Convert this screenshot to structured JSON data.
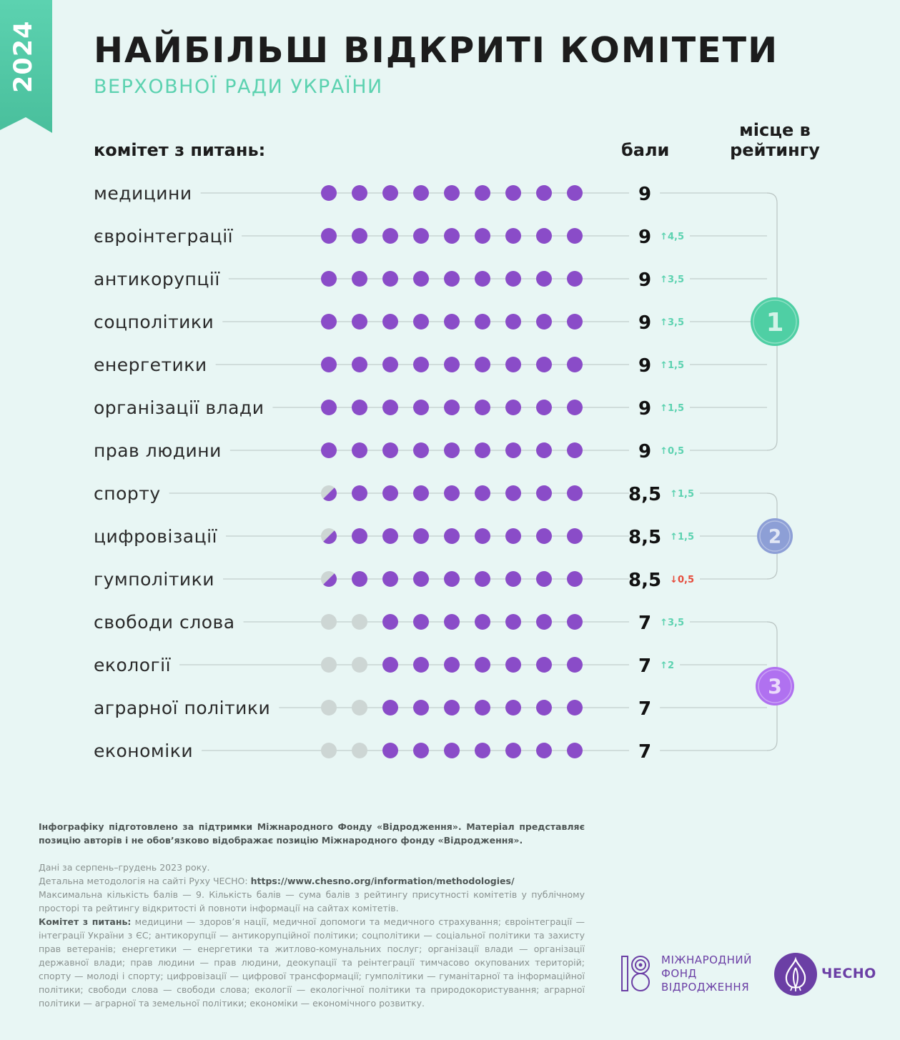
{
  "year": "2024",
  "title": "НАЙБІЛЬШ ВІДКРИТІ КОМІТЕТИ",
  "subtitle": "ВЕРХОВНОЇ РАДИ УКРАЇНИ",
  "headers": {
    "committee": "комітет з питань:",
    "score": "бали",
    "rank": "місце в рейтингу"
  },
  "colors": {
    "background": "#e8f6f4",
    "dot_filled": "#8a4cc8",
    "dot_empty": "#cdd6d4",
    "change_up": "#5cd2b0",
    "change_down": "#e64b3b",
    "accent_green": "#5cd2b0",
    "rank1": "#4fcfa4",
    "rank2": "#8d9fd6",
    "rank3": "#b071f0"
  },
  "chart_data": {
    "type": "table",
    "max_score": 9,
    "rows": [
      {
        "committee": "медицини",
        "score": 9,
        "score_label": "9",
        "change": "",
        "direction": "",
        "rank": 1
      },
      {
        "committee": "євроінтеграції",
        "score": 9,
        "score_label": "9",
        "change": "↑4,5",
        "direction": "up",
        "rank": 1
      },
      {
        "committee": "антикорупції",
        "score": 9,
        "score_label": "9",
        "change": "↑3,5",
        "direction": "up",
        "rank": 1
      },
      {
        "committee": "соцполітики",
        "score": 9,
        "score_label": "9",
        "change": "↑3,5",
        "direction": "up",
        "rank": 1
      },
      {
        "committee": "енергетики",
        "score": 9,
        "score_label": "9",
        "change": "↑1,5",
        "direction": "up",
        "rank": 1
      },
      {
        "committee": "організації влади",
        "score": 9,
        "score_label": "9",
        "change": "↑1,5",
        "direction": "up",
        "rank": 1
      },
      {
        "committee": "прав людини",
        "score": 9,
        "score_label": "9",
        "change": "↑0,5",
        "direction": "up",
        "rank": 1
      },
      {
        "committee": "спорту",
        "score": 8.5,
        "score_label": "8,5",
        "change": "↑1,5",
        "direction": "up",
        "rank": 2
      },
      {
        "committee": "цифровізації",
        "score": 8.5,
        "score_label": "8,5",
        "change": "↑1,5",
        "direction": "up",
        "rank": 2
      },
      {
        "committee": "гумполітики",
        "score": 8.5,
        "score_label": "8,5",
        "change": "↓0,5",
        "direction": "down",
        "rank": 2
      },
      {
        "committee": "свободи слова",
        "score": 7,
        "score_label": "7",
        "change": "↑3,5",
        "direction": "up",
        "rank": 3
      },
      {
        "committee": "екології",
        "score": 7,
        "score_label": "7",
        "change": "↑2",
        "direction": "up",
        "rank": 3
      },
      {
        "committee": "аграрної політики",
        "score": 7,
        "score_label": "7",
        "change": "",
        "direction": "",
        "rank": 3
      },
      {
        "committee": "економіки",
        "score": 7,
        "score_label": "7",
        "change": "",
        "direction": "",
        "rank": 3
      }
    ],
    "ranks": [
      {
        "label": "1",
        "color": "#4fcfa4"
      },
      {
        "label": "2",
        "color": "#8d9fd6"
      },
      {
        "label": "3",
        "color": "#b071f0"
      }
    ]
  },
  "footnote": {
    "support": "Інфографіку підготовлено за підтримки Міжнародного Фонду «Відродження». Матеріал представляє позицію авторів і не обов’язково відображає позицію Міжнародного фонду «Відродження».",
    "period": "Дані за серпень–грудень 2023 року.",
    "methodology_prefix": "Детальна методологія на сайті Руху ЧЕСНО: ",
    "methodology_url": "https://www.chesno.org/information/methodologies/",
    "max_score": "Максимальна кількість балів — 9. Кількість балів — сума балів з рейтингу присутності комітетів у публічному просторі та рейтингу відкритості й повноти інформації на сайтах комітетів.",
    "legend_title": "Комітет з питань:",
    "legend_text": " медицини — здоров’я нації, медичної допомоги та медичного страхування; євроінтеграції — інтеграції України з ЄС; антикорупції — антикорупційної політики; соцполітики — соціальної політики та захисту прав ветеранів; енергетики — енергетики та житлово-комунальних послуг; організації влади — організації державної влади; прав людини — прав людини, деокупації та реінтеграції тимчасово окупованих територій; спорту — молоді і спорту; цифровізації — цифрової трансформації; гумполітики — гуманітарної та інформаційної політики; свободи слова — свободи слова; екології — екологічної політики та природокористування; аграрної політики — аграрної та земельної політики; економіки — економічного розвитку."
  },
  "logos": {
    "irf_line1": "МІЖНАРОДНИЙ",
    "irf_line2": "ФОНД",
    "irf_line3": "ВІДРОДЖЕННЯ",
    "irf_icon": "irf-logo-icon",
    "chesno": "ЧЕСНО",
    "chesno_icon": "garlic-icon"
  }
}
